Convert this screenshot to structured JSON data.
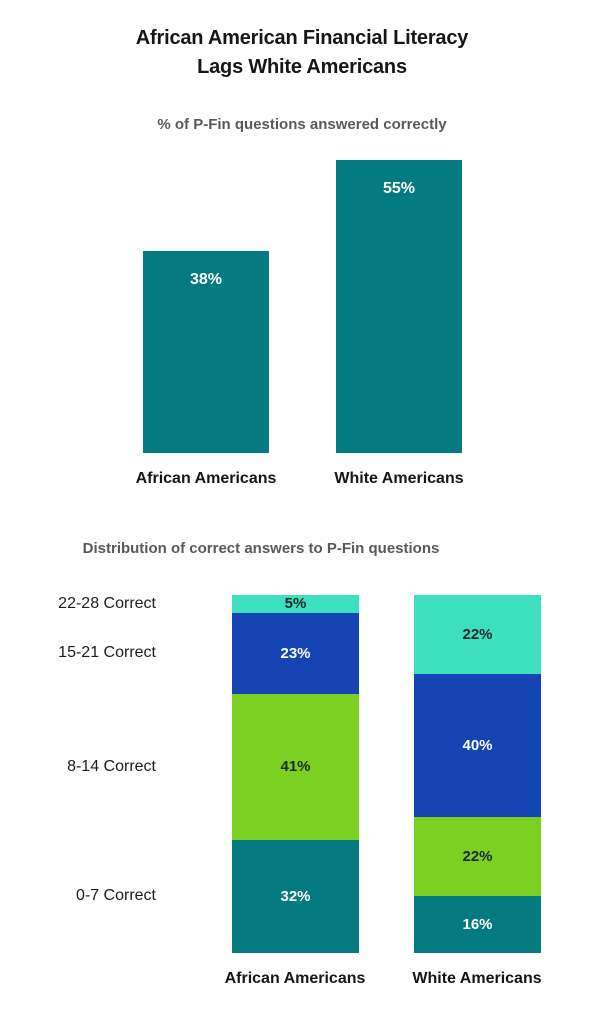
{
  "colors": {
    "teal": "#047B81",
    "turquoise": "#3DDFBD",
    "blue": "#1544B4",
    "green": "#7CD022",
    "title_text": "#161616",
    "muted_text": "#58595B",
    "dark_label": "#1E2B29",
    "light_label": "#FFFFFF"
  },
  "chart_data": [
    {
      "type": "bar",
      "title": "African American Financial Literacy\nLags White Americans",
      "subtitle": "% of P-Fin questions answered correctly",
      "categories": [
        "African Americans",
        "White Americans"
      ],
      "values": [
        38,
        55
      ],
      "value_labels": [
        "38%",
        "55%"
      ],
      "bar_color": "#047B81",
      "value_label_color": "#FFFFFF",
      "ylim": [
        0,
        55
      ],
      "grid": false,
      "legend": "none",
      "axes_hidden": true
    },
    {
      "type": "bar",
      "subtype": "stacked-100-percent",
      "title": "Distribution of correct answers to P-Fin questions",
      "categories": [
        "African Americans",
        "White Americans"
      ],
      "series": [
        {
          "name": "22-28 Correct",
          "values": [
            5,
            22
          ],
          "value_labels": [
            "5%",
            "22%"
          ],
          "color": "#3DDFBD",
          "label_color": "#1E2B29"
        },
        {
          "name": "15-21 Correct",
          "values": [
            23,
            40
          ],
          "value_labels": [
            "23%",
            "40%"
          ],
          "color": "#1544B4",
          "label_color": "#FFFFFF"
        },
        {
          "name": "8-14 Correct",
          "values": [
            41,
            22
          ],
          "value_labels": [
            "41%",
            "22%"
          ],
          "color": "#7CD022",
          "label_color": "#1E2B29"
        },
        {
          "name": "0-7 Correct",
          "values": [
            32,
            16
          ],
          "value_labels": [
            "32%",
            "16%"
          ],
          "color": "#047B81",
          "label_color": "#FFFFFF"
        }
      ],
      "stack_order": "top-to-bottom",
      "grid": false,
      "legend": "row-labels-left-aligned-to-first-bar-segments"
    }
  ]
}
